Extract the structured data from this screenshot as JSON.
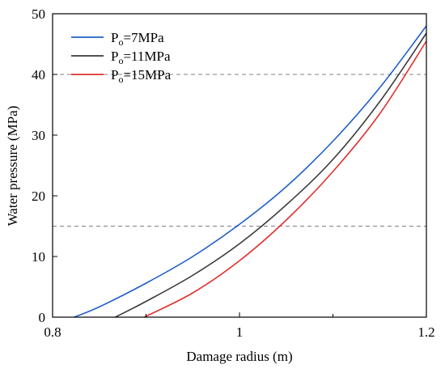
{
  "chart_data": {
    "type": "line",
    "xlabel": "Damage radius (m)",
    "ylabel": "Water pressure (MPa)",
    "xlim": [
      0.8,
      1.2
    ],
    "ylim": [
      0,
      50
    ],
    "x_ticks": [
      0.8,
      1.0,
      1.2
    ],
    "x_tick_labels": [
      "0.8",
      "1",
      "1.2"
    ],
    "y_ticks": [
      0,
      10,
      20,
      30,
      40,
      50
    ],
    "y_tick_labels": [
      "0",
      "10",
      "20",
      "30",
      "40",
      "50"
    ],
    "grid": false,
    "legend_placement": "top-left",
    "reference_lines": [
      {
        "axis": "y",
        "value": 40,
        "style": "dashed",
        "color": "#808080"
      },
      {
        "axis": "y",
        "value": 15,
        "style": "dashed",
        "color": "#808080"
      }
    ],
    "series": [
      {
        "name": "Po=7MPa",
        "name_main": "P",
        "name_sub": "o",
        "name_rest": "=7MPa",
        "color": "#1f5fc8",
        "x": [
          0.823,
          0.85,
          0.9,
          0.95,
          1.0,
          1.05,
          1.1,
          1.15,
          1.2
        ],
        "y": [
          0,
          1.7,
          5.6,
          10.0,
          15.3,
          21.5,
          29.0,
          37.8,
          48.0
        ]
      },
      {
        "name": "Po=11MPa",
        "name_main": "P",
        "name_sub": "o",
        "name_rest": "=11MPa",
        "color": "#3a3a3a",
        "x": [
          0.867,
          0.9,
          0.95,
          1.0,
          1.05,
          1.1,
          1.15,
          1.2
        ],
        "y": [
          0,
          2.6,
          6.9,
          12.1,
          18.5,
          26.0,
          35.5,
          46.8
        ]
      },
      {
        "name": "Po=15MPa",
        "name_main": "P",
        "name_sub": "o",
        "name_rest": "=15MPa",
        "color": "#e03030",
        "x": [
          0.898,
          0.95,
          1.0,
          1.05,
          1.1,
          1.15,
          1.2
        ],
        "y": [
          0,
          4.0,
          9.3,
          16.0,
          24.0,
          33.5,
          45.5
        ]
      }
    ]
  }
}
